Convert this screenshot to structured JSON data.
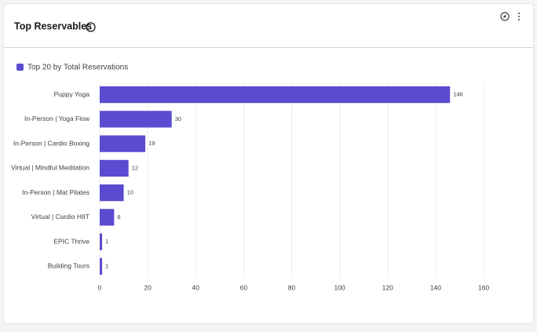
{
  "chart_data": {
    "type": "bar",
    "orientation": "horizontal",
    "title": "Top Reservables",
    "categories": [
      "Puppy Yoga",
      "In-Person | Yoga Flow",
      "In-Person | Cardio Boxing",
      "Virtual | Mindful Meditation",
      "In-Person | Mat Pilates",
      "Virtual | Cardio HIIT",
      "EPIC Thrive",
      "Building Tours"
    ],
    "series": [
      {
        "name": "Top 20 by Total Reservations",
        "color": "#5a4bd1",
        "values": [
          146,
          30,
          19,
          12,
          10,
          6,
          1,
          1
        ]
      }
    ],
    "xlim": [
      0,
      160
    ],
    "xticks": [
      0,
      20,
      40,
      60,
      80,
      100,
      120,
      140,
      160
    ],
    "grid": true,
    "data_labels": true,
    "legend": "top-left"
  }
}
